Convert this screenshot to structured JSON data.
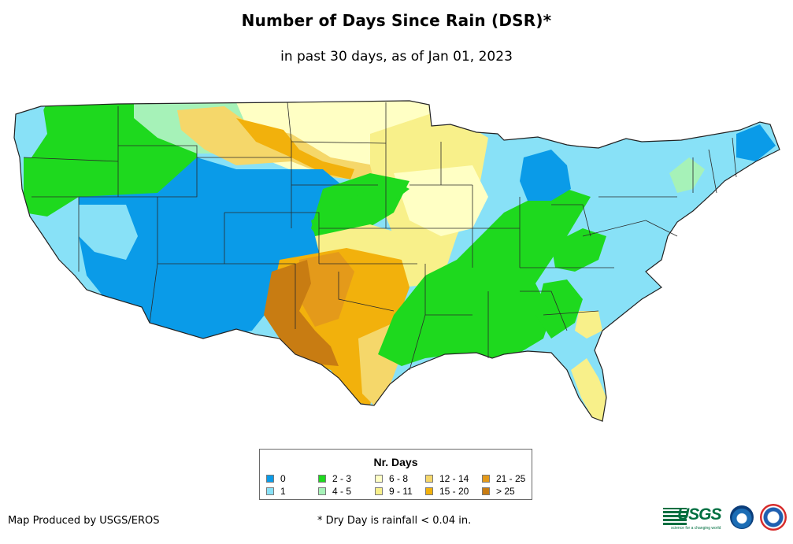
{
  "title": "Number of Days Since Rain (DSR)*",
  "subtitle": "in past 30 days, as of Jan 01, 2023",
  "legend": {
    "title": "Nr. Days",
    "classes": [
      {
        "label": "0",
        "color": "#0a9be8"
      },
      {
        "label": "1",
        "color": "#88e1f7"
      },
      {
        "label": "2 - 3",
        "color": "#1ed91e"
      },
      {
        "label": "4 - 5",
        "color": "#a6f2b8"
      },
      {
        "label": "6 - 8",
        "color": "#ffffc4"
      },
      {
        "label": "9 - 11",
        "color": "#f8f08a"
      },
      {
        "label": "12 - 14",
        "color": "#f5d76a"
      },
      {
        "label": "15 - 20",
        "color": "#f2b10c"
      },
      {
        "label": "21 - 25",
        "color": "#e49a1a"
      },
      {
        "label": "> 25",
        "color": "#c87c12"
      }
    ]
  },
  "credit": "Map Produced by USGS/EROS",
  "footnote": "* Dry Day is rainfall < 0.04 in.",
  "logos": {
    "usgs": "USGS",
    "usgs_tagline": "science for a changing world",
    "noaa": "noaa-icon",
    "nws": "nws-icon"
  }
}
